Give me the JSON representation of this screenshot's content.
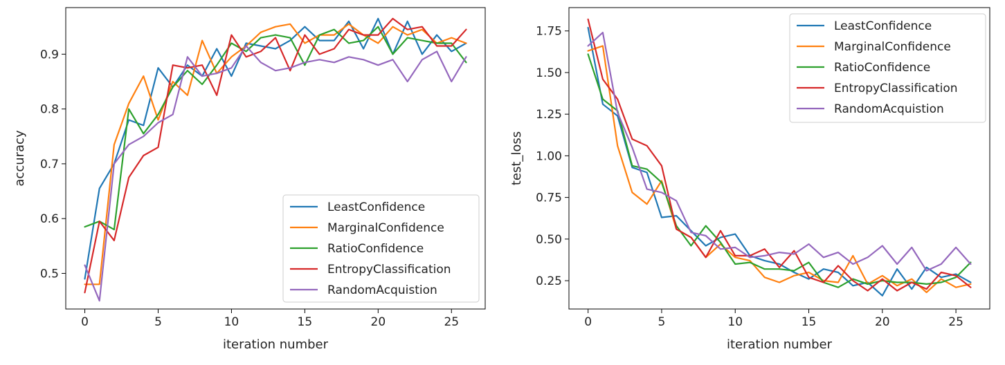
{
  "colors": {
    "blue": "#1f77b4",
    "orange": "#ff7f0e",
    "green": "#2ca02c",
    "red": "#d62728",
    "purple": "#9467bd"
  },
  "chart_data": [
    {
      "type": "line",
      "xlabel": "iteration number",
      "ylabel": "accuracy",
      "xlim": [
        -1.3,
        27.3
      ],
      "ylim": [
        0.435,
        0.985
      ],
      "xticks": [
        0,
        5,
        10,
        15,
        20,
        25
      ],
      "xtick_labels": [
        "0",
        "5",
        "10",
        "15",
        "20",
        "25"
      ],
      "yticks": [
        0.5,
        0.6,
        0.7,
        0.8,
        0.9
      ],
      "ytick_labels": [
        "0.5",
        "0.6",
        "0.7",
        "0.8",
        "0.9"
      ],
      "grid": false,
      "legend_position": "lower-right",
      "x": [
        0,
        1,
        2,
        3,
        4,
        5,
        6,
        7,
        8,
        9,
        10,
        11,
        12,
        13,
        14,
        15,
        16,
        17,
        18,
        19,
        20,
        21,
        22,
        23,
        24,
        25,
        26
      ],
      "series": [
        {
          "name": "LeastConfidence",
          "color": "#1f77b4",
          "values": [
            0.49,
            0.655,
            0.7,
            0.78,
            0.77,
            0.875,
            0.84,
            0.88,
            0.86,
            0.91,
            0.86,
            0.92,
            0.915,
            0.91,
            0.925,
            0.95,
            0.925,
            0.925,
            0.96,
            0.91,
            0.965,
            0.9,
            0.96,
            0.9,
            0.935,
            0.905,
            0.92
          ]
        },
        {
          "name": "MarginalConfidence",
          "color": "#ff7f0e",
          "values": [
            0.48,
            0.48,
            0.735,
            0.81,
            0.86,
            0.78,
            0.85,
            0.825,
            0.925,
            0.865,
            0.895,
            0.915,
            0.94,
            0.95,
            0.955,
            0.92,
            0.935,
            0.935,
            0.955,
            0.935,
            0.92,
            0.95,
            0.935,
            0.945,
            0.92,
            0.93,
            0.92
          ]
        },
        {
          "name": "RatioConfidence",
          "color": "#2ca02c",
          "values": [
            0.585,
            0.595,
            0.58,
            0.8,
            0.755,
            0.79,
            0.84,
            0.87,
            0.845,
            0.88,
            0.92,
            0.905,
            0.93,
            0.935,
            0.93,
            0.88,
            0.935,
            0.945,
            0.92,
            0.925,
            0.95,
            0.9,
            0.93,
            0.925,
            0.92,
            0.92,
            0.885
          ]
        },
        {
          "name": "EntropyClassification",
          "color": "#d62728",
          "values": [
            0.465,
            0.595,
            0.56,
            0.675,
            0.715,
            0.73,
            0.88,
            0.875,
            0.88,
            0.825,
            0.935,
            0.895,
            0.905,
            0.93,
            0.87,
            0.935,
            0.9,
            0.91,
            0.945,
            0.935,
            0.935,
            0.965,
            0.945,
            0.95,
            0.915,
            0.915,
            0.945
          ]
        },
        {
          "name": "RandomAcquistion",
          "color": "#9467bd",
          "values": [
            0.515,
            0.45,
            0.7,
            0.735,
            0.75,
            0.775,
            0.79,
            0.895,
            0.86,
            0.865,
            0.875,
            0.915,
            0.885,
            0.87,
            0.875,
            0.885,
            0.89,
            0.885,
            0.895,
            0.89,
            0.88,
            0.89,
            0.85,
            0.89,
            0.905,
            0.85,
            0.895
          ]
        }
      ]
    },
    {
      "type": "line",
      "xlabel": "iteration number",
      "ylabel": "test_loss",
      "xlim": [
        -1.3,
        27.3
      ],
      "ylim": [
        0.08,
        1.89
      ],
      "xticks": [
        0,
        5,
        10,
        15,
        20,
        25
      ],
      "xtick_labels": [
        "0",
        "5",
        "10",
        "15",
        "20",
        "25"
      ],
      "yticks": [
        0.25,
        0.5,
        0.75,
        1.0,
        1.25,
        1.5,
        1.75
      ],
      "ytick_labels": [
        "0.25",
        "0.50",
        "0.75",
        "1.00",
        "1.25",
        "1.50",
        "1.75"
      ],
      "grid": false,
      "legend_position": "upper-right",
      "x": [
        0,
        1,
        2,
        3,
        4,
        5,
        6,
        7,
        8,
        9,
        10,
        11,
        12,
        13,
        14,
        15,
        16,
        17,
        18,
        19,
        20,
        21,
        22,
        23,
        24,
        25,
        26
      ],
      "series": [
        {
          "name": "LeastConfidence",
          "color": "#1f77b4",
          "values": [
            1.77,
            1.31,
            1.24,
            0.93,
            0.9,
            0.63,
            0.64,
            0.55,
            0.46,
            0.51,
            0.53,
            0.4,
            0.37,
            0.35,
            0.3,
            0.26,
            0.32,
            0.3,
            0.22,
            0.24,
            0.16,
            0.32,
            0.2,
            0.33,
            0.27,
            0.29,
            0.24
          ]
        },
        {
          "name": "MarginalConfidence",
          "color": "#ff7f0e",
          "values": [
            1.63,
            1.66,
            1.06,
            0.78,
            0.71,
            0.85,
            0.56,
            0.51,
            0.39,
            0.47,
            0.39,
            0.37,
            0.27,
            0.24,
            0.28,
            0.3,
            0.25,
            0.24,
            0.4,
            0.23,
            0.28,
            0.22,
            0.26,
            0.18,
            0.26,
            0.21,
            0.23
          ]
        },
        {
          "name": "RatioConfidence",
          "color": "#2ca02c",
          "values": [
            1.61,
            1.34,
            1.27,
            0.94,
            0.92,
            0.84,
            0.58,
            0.46,
            0.58,
            0.48,
            0.35,
            0.36,
            0.32,
            0.32,
            0.31,
            0.36,
            0.24,
            0.21,
            0.26,
            0.23,
            0.25,
            0.24,
            0.24,
            0.23,
            0.24,
            0.27,
            0.36
          ]
        },
        {
          "name": "EntropyClassification",
          "color": "#d62728",
          "values": [
            1.82,
            1.46,
            1.34,
            1.1,
            1.06,
            0.94,
            0.56,
            0.51,
            0.39,
            0.55,
            0.4,
            0.4,
            0.44,
            0.33,
            0.43,
            0.27,
            0.24,
            0.34,
            0.25,
            0.19,
            0.26,
            0.19,
            0.24,
            0.2,
            0.3,
            0.28,
            0.21
          ]
        },
        {
          "name": "RandomAcquistion",
          "color": "#9467bd",
          "values": [
            1.66,
            1.74,
            1.26,
            1.05,
            0.8,
            0.78,
            0.73,
            0.54,
            0.52,
            0.44,
            0.45,
            0.39,
            0.4,
            0.42,
            0.41,
            0.47,
            0.39,
            0.42,
            0.35,
            0.39,
            0.46,
            0.35,
            0.45,
            0.31,
            0.35,
            0.45,
            0.35
          ]
        }
      ]
    }
  ]
}
